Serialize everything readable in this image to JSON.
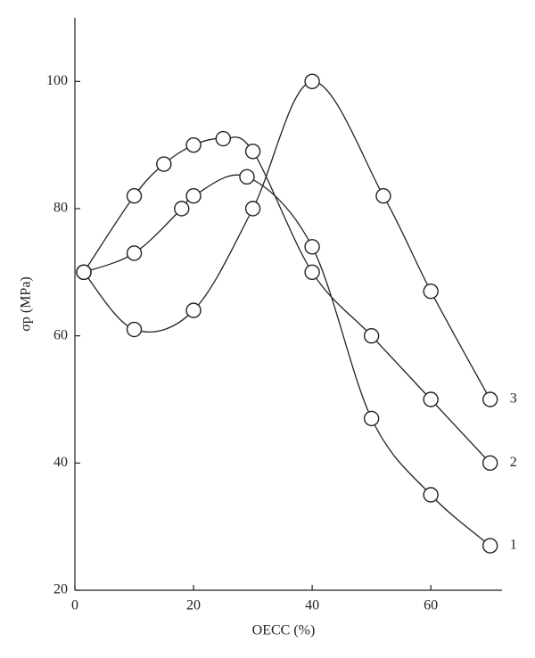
{
  "chart_data": {
    "type": "line",
    "x_label": "OECC (%)",
    "y_label": "σp (MPa)",
    "xlim": [
      0,
      72
    ],
    "ylim": [
      20,
      110
    ],
    "xticks": [
      0,
      20,
      40,
      60
    ],
    "yticks": [
      20,
      40,
      60,
      80,
      100
    ],
    "series": [
      {
        "name": "1",
        "color": "#222222",
        "x": [
          1.5,
          10,
          18,
          20,
          29,
          40,
          50,
          60,
          70
        ],
        "values": [
          70,
          73,
          80,
          82,
          85,
          74,
          47,
          35,
          27
        ]
      },
      {
        "name": "2",
        "color": "#222222",
        "x": [
          1.5,
          10,
          15,
          20,
          25,
          30,
          40,
          50,
          60,
          70
        ],
        "values": [
          70,
          82,
          87,
          90,
          91,
          89,
          70,
          60,
          50,
          40
        ]
      },
      {
        "name": "3",
        "color": "#222222",
        "x": [
          1.5,
          10,
          20,
          30,
          40,
          52,
          60,
          70
        ],
        "values": [
          70,
          61,
          64,
          80,
          100,
          82,
          67,
          50
        ]
      }
    ]
  }
}
